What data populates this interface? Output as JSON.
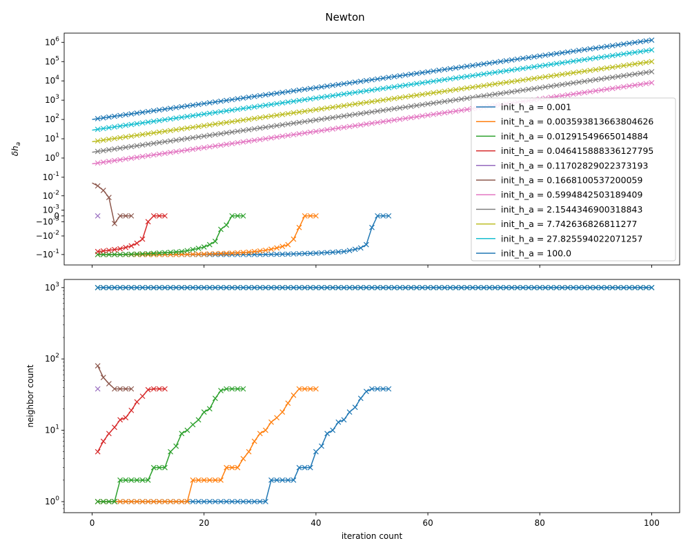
{
  "title": "Newton",
  "colors": [
    "#1f77b4",
    "#ff7f0e",
    "#2ca02c",
    "#d62728",
    "#9467bd",
    "#8c564b",
    "#e377c2",
    "#7f7f7f",
    "#bcbd22",
    "#17becf",
    "#1f77b4"
  ],
  "chart_data": [
    {
      "type": "line",
      "yscale": "symlog",
      "ylabel": "δh_a",
      "xlim": [
        -5,
        105
      ],
      "ylim": [
        -0.35,
        3000000
      ],
      "yticks": [
        {
          "value": -0.1,
          "label": "−10^{-1}"
        },
        {
          "value": -0.01,
          "label": "−10^{-2}"
        },
        {
          "value": -0.001,
          "label": "−10^{-3}"
        },
        {
          "value": 0,
          "label": "0"
        },
        {
          "value": 0.001,
          "label": "10^{-3}"
        },
        {
          "value": 0.01,
          "label": "10^{-2}"
        },
        {
          "value": 0.1,
          "label": "10^{-1}"
        },
        {
          "value": 1,
          "label": "10^{0}"
        },
        {
          "value": 10,
          "label": "10^{1}"
        },
        {
          "value": 100,
          "label": "10^{2}"
        },
        {
          "value": 1000,
          "label": "10^{3}"
        },
        {
          "value": 10000,
          "label": "10^{4}"
        },
        {
          "value": 100000,
          "label": "10^{5}"
        },
        {
          "value": 1000000,
          "label": "10^{6}"
        }
      ],
      "xticks": [
        0,
        20,
        40,
        60,
        80,
        100
      ],
      "legend_position": "center-right",
      "series": [
        {
          "name": "init_h_a = 0.001",
          "x": [
            1,
            5,
            10,
            15,
            20,
            25,
            30,
            35,
            40,
            45,
            48,
            49,
            50,
            51,
            52,
            53
          ],
          "y": [
            -0.1,
            -0.1,
            -0.1,
            -0.1,
            -0.1,
            -0.1,
            -0.1,
            -0.095,
            -0.085,
            -0.07,
            -0.045,
            -0.03,
            -0.003,
            0,
            0,
            0
          ]
        },
        {
          "name": "init_h_a = 0.003593813663804626",
          "x": [
            1,
            5,
            10,
            15,
            20,
            25,
            28,
            31,
            33,
            35,
            36,
            37,
            38,
            39,
            40
          ],
          "y": [
            -0.1,
            -0.1,
            -0.1,
            -0.1,
            -0.095,
            -0.085,
            -0.075,
            -0.06,
            -0.045,
            -0.03,
            -0.015,
            -0.003,
            0,
            0,
            0
          ]
        },
        {
          "name": "init_h_a = 0.01291549665014884",
          "x": [
            1,
            5,
            10,
            13,
            16,
            18,
            20,
            22,
            23,
            24,
            25,
            26,
            27
          ],
          "y": [
            -0.1,
            -0.1,
            -0.09,
            -0.08,
            -0.07,
            -0.055,
            -0.04,
            -0.02,
            -0.004,
            -0.002,
            0,
            0,
            0
          ]
        },
        {
          "name": "init_h_a = 0.046415888336127795",
          "x": [
            1,
            3,
            5,
            7,
            9,
            10,
            11,
            12,
            13
          ],
          "y": [
            -0.07,
            -0.06,
            -0.05,
            -0.035,
            -0.015,
            -0.001,
            0,
            0,
            0
          ]
        },
        {
          "name": "init_h_a = 0.11702829022373193",
          "x": [
            1
          ],
          "y": [
            0
          ]
        },
        {
          "name": "init_h_a = 0.1668100537200059",
          "x": [
            0,
            1,
            2,
            3,
            4,
            5,
            6,
            7
          ],
          "y": [
            0.05,
            0.035,
            0.02,
            0.008,
            -0.0015,
            0,
            0,
            0
          ]
        },
        {
          "name": "init_h_a = 0.5994842503189409",
          "x": [
            0,
            100
          ],
          "y": [
            0.5,
            8000
          ]
        },
        {
          "name": "init_h_a = 2.1544346900318843",
          "x": [
            0,
            100
          ],
          "y": [
            2,
            30000
          ]
        },
        {
          "name": "init_h_a = 7.742636826811277",
          "x": [
            0,
            100
          ],
          "y": [
            7,
            100000
          ]
        },
        {
          "name": "init_h_a = 27.825594022071257",
          "x": [
            0,
            100
          ],
          "y": [
            28,
            400000
          ]
        },
        {
          "name": "init_h_a = 100.0",
          "x": [
            0,
            100
          ],
          "y": [
            100,
            1300000
          ]
        }
      ]
    },
    {
      "type": "line",
      "yscale": "log",
      "xlabel": "iteration count",
      "ylabel": "neighbor count",
      "xlim": [
        -5,
        105
      ],
      "ylim": [
        0.7,
        1300
      ],
      "yticks": [
        {
          "value": 1,
          "label": "10^{0}"
        },
        {
          "value": 10,
          "label": "10^{1}"
        },
        {
          "value": 100,
          "label": "10^{2}"
        },
        {
          "value": 1000,
          "label": "10^{3}"
        }
      ],
      "xticks": [
        0,
        20,
        40,
        60,
        80,
        100
      ],
      "series": [
        {
          "name": "init_h_a = 0.001",
          "x": [
            1,
            31,
            32,
            36,
            37,
            39,
            40,
            41,
            42,
            43,
            44,
            45,
            46,
            47,
            48,
            49,
            50,
            51,
            52,
            53
          ],
          "y": [
            1,
            1,
            2,
            2,
            3,
            3,
            5,
            6,
            9,
            10,
            13,
            14,
            18,
            21,
            28,
            35,
            38,
            38,
            38,
            38
          ]
        },
        {
          "name": "init_h_a = 0.003593813663804626",
          "x": [
            1,
            17,
            18,
            23,
            24,
            26,
            27,
            28,
            29,
            30,
            31,
            32,
            33,
            34,
            35,
            36,
            37,
            38,
            39,
            40
          ],
          "y": [
            1,
            1,
            2,
            2,
            3,
            3,
            4,
            5,
            7,
            9,
            10,
            13,
            15,
            18,
            24,
            31,
            38,
            38,
            38,
            38
          ]
        },
        {
          "name": "init_h_a = 0.01291549665014884",
          "x": [
            1,
            4,
            5,
            10,
            11,
            13,
            14,
            15,
            16,
            17,
            18,
            19,
            20,
            21,
            22,
            23,
            24,
            25,
            26,
            27
          ],
          "y": [
            1,
            1,
            2,
            2,
            3,
            3,
            5,
            6,
            9,
            10,
            12,
            14,
            18,
            20,
            28,
            36,
            38,
            38,
            38,
            38
          ]
        },
        {
          "name": "init_h_a = 0.046415888336127795",
          "x": [
            1,
            2,
            3,
            4,
            5,
            6,
            7,
            8,
            9,
            10,
            11,
            12,
            13
          ],
          "y": [
            5,
            7,
            9,
            11,
            14,
            15,
            19,
            25,
            30,
            37,
            38,
            38,
            38
          ]
        },
        {
          "name": "init_h_a = 0.11702829022373193",
          "x": [
            1
          ],
          "y": [
            38
          ]
        },
        {
          "name": "init_h_a = 0.1668100537200059",
          "x": [
            1,
            2,
            3,
            4,
            5,
            6,
            7
          ],
          "y": [
            80,
            55,
            45,
            38,
            38,
            38,
            38
          ]
        },
        {
          "name": "init_h_a = 0.5994842503189409",
          "x": [
            1,
            100
          ],
          "y": [
            1000,
            1000
          ]
        },
        {
          "name": "init_h_a = 2.1544346900318843",
          "x": [
            1,
            100
          ],
          "y": [
            1000,
            1000
          ]
        },
        {
          "name": "init_h_a = 7.742636826811277",
          "x": [
            1,
            100
          ],
          "y": [
            1000,
            1000
          ]
        },
        {
          "name": "init_h_a = 27.825594022071257",
          "x": [
            1,
            100
          ],
          "y": [
            1000,
            1000
          ]
        },
        {
          "name": "init_h_a = 100.0",
          "x": [
            1,
            100
          ],
          "y": [
            1000,
            1000
          ]
        }
      ]
    }
  ]
}
